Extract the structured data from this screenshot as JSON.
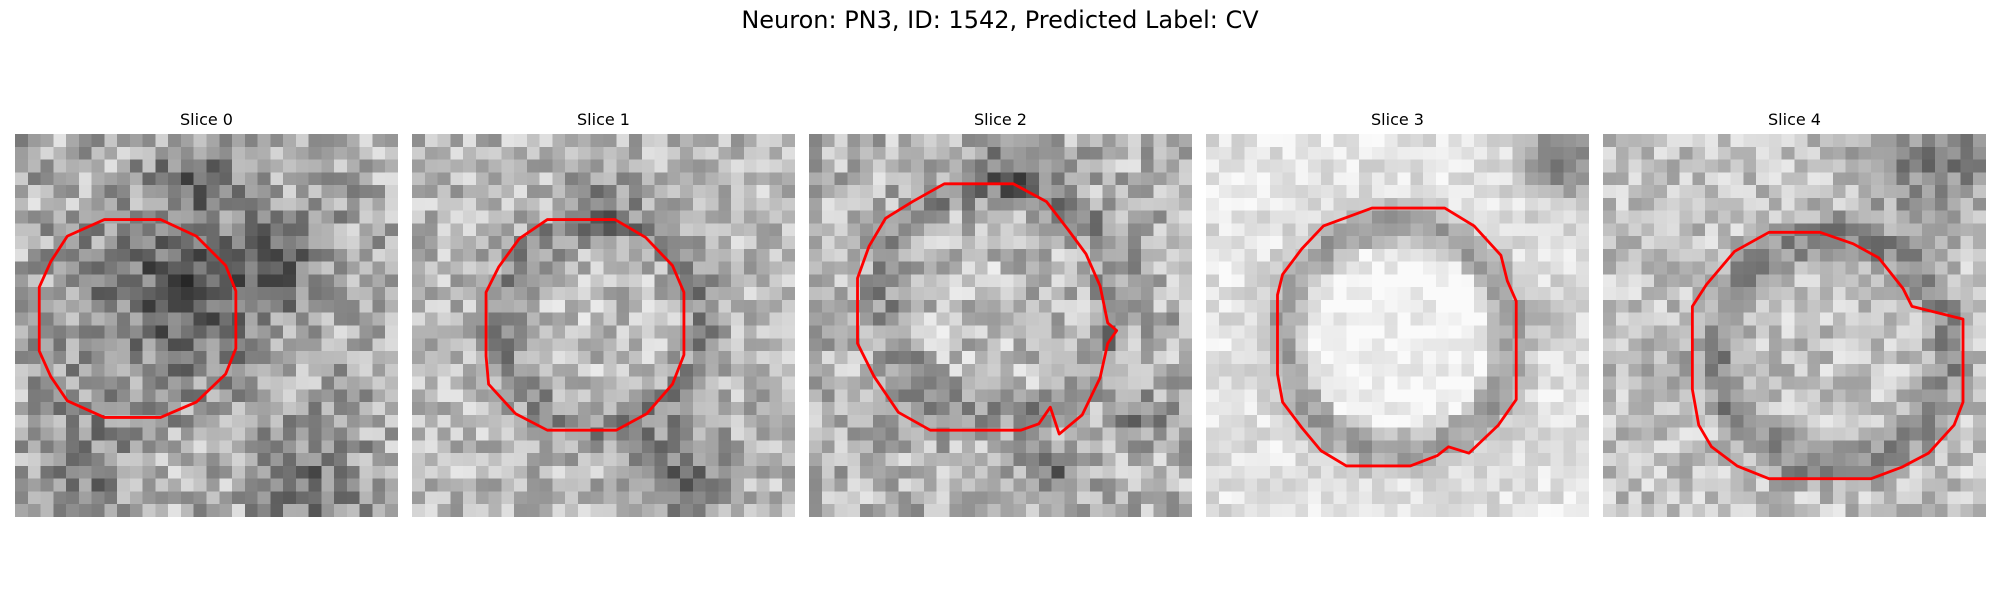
{
  "figure": {
    "title": "Neuron: PN3, ID: 1542, Predicted Label: CV"
  },
  "panels": [
    {
      "title": "Slice 0"
    },
    {
      "title": "Slice 1"
    },
    {
      "title": "Slice 2"
    },
    {
      "title": "Slice 3"
    },
    {
      "title": "Slice 4"
    }
  ],
  "colors": {
    "contour": "#ff0000"
  }
}
